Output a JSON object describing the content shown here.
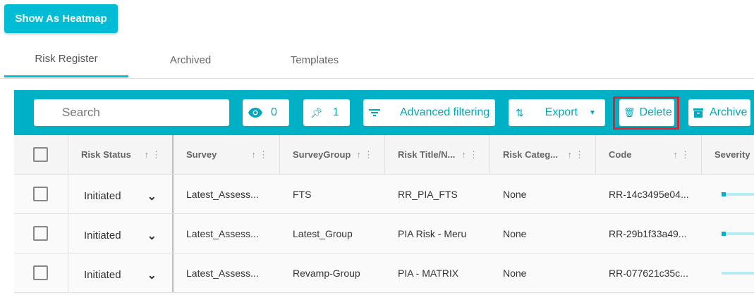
{
  "heatmap_button": "Show As Heatmap",
  "tabs": [
    {
      "label": "Risk Register",
      "active": true
    },
    {
      "label": "Archived"
    },
    {
      "label": "Templates"
    }
  ],
  "toolbar": {
    "search_placeholder": "Search",
    "view_count": "0",
    "pin_count": "1",
    "advanced_filtering": "Advanced filtering",
    "export": "Export",
    "delete": "Delete",
    "archive": "Archive"
  },
  "columns": [
    "Risk Status",
    "Survey",
    "SurveyGroup",
    "Risk Title/N...",
    "Risk Categ...",
    "Code",
    "Severity"
  ],
  "rows": [
    {
      "status": "Initiated",
      "survey": "Latest_Assess...",
      "group": "FTS",
      "title": "RR_PIA_FTS",
      "category": "None",
      "code": "RR-14c3495e04...",
      "severity_fill": 0.1
    },
    {
      "status": "Initiated",
      "survey": "Latest_Assess...",
      "group": "Latest_Group",
      "title": "PIA Risk - Meru",
      "category": "None",
      "code": "RR-29b1f33a49...",
      "severity_fill": 0.1
    },
    {
      "status": "Initiated",
      "survey": "Latest_Assess...",
      "group": "Revamp-Group",
      "title": "PIA - MATRIX",
      "category": "None",
      "code": "RR-077621c35c...",
      "severity_fill": 0
    }
  ],
  "colors": {
    "accent": "#00b0c4",
    "highlight": "#e5202a"
  }
}
